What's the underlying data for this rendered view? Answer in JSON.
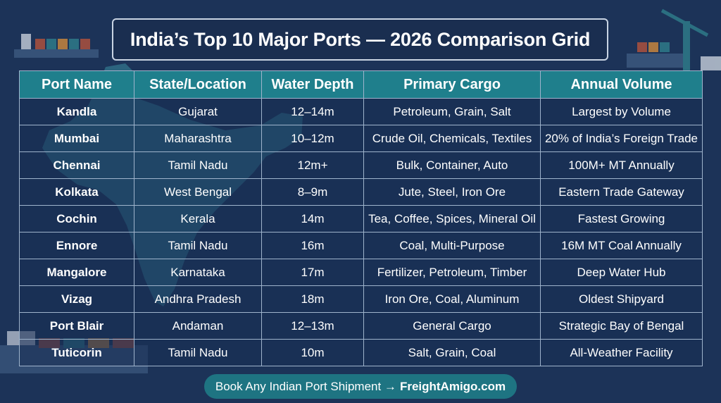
{
  "title": "India’s Top 10 Major Ports — 2026 Comparison Grid",
  "table": {
    "headers": [
      "Port Name",
      "State/Location",
      "Water Depth",
      "Primary Cargo",
      "Annual Volume"
    ],
    "rows": [
      [
        "Kandla",
        "Gujarat",
        "12–14m",
        "Petroleum, Grain, Salt",
        "Largest by Volume"
      ],
      [
        "Mumbai",
        "Maharashtra",
        "10–12m",
        "Crude Oil, Chemicals, Textiles",
        "20% of India’s Foreign Trade"
      ],
      [
        "Chennai",
        "Tamil Nadu",
        "12m+",
        "Bulk, Container, Auto",
        "100M+ MT Annually"
      ],
      [
        "Kolkata",
        "West Bengal",
        "8–9m",
        "Jute, Steel, Iron Ore",
        "Eastern Trade Gateway"
      ],
      [
        "Cochin",
        "Kerala",
        "14m",
        "Tea, Coffee, Spices, Mineral Oil",
        "Fastest Growing"
      ],
      [
        "Ennore",
        "Tamil Nadu",
        "16m",
        "Coal, Multi-Purpose",
        "16M MT Coal Annually"
      ],
      [
        "Mangalore",
        "Karnataka",
        "17m",
        "Fertilizer, Petroleum, Timber",
        "Deep Water Hub"
      ],
      [
        "Vizag",
        "Andhra Pradesh",
        "18m",
        "Iron Ore, Coal, Aluminum",
        "Oldest Shipyard"
      ],
      [
        "Port Blair",
        "Andaman",
        "12–13m",
        "General Cargo",
        "Strategic Bay of Bengal"
      ],
      [
        "Tuticorin",
        "Tamil Nadu",
        "10m",
        "Salt, Grain, Coal",
        "All-Weather Facility"
      ]
    ]
  },
  "cta": {
    "text": "Book Any Indian Port Shipment →",
    "brand": "FreightAmigo.com"
  },
  "colors": {
    "background": "#1c3358",
    "header": "#1f7f8c",
    "map": "#2f6d86",
    "cta": "#1e7482"
  }
}
